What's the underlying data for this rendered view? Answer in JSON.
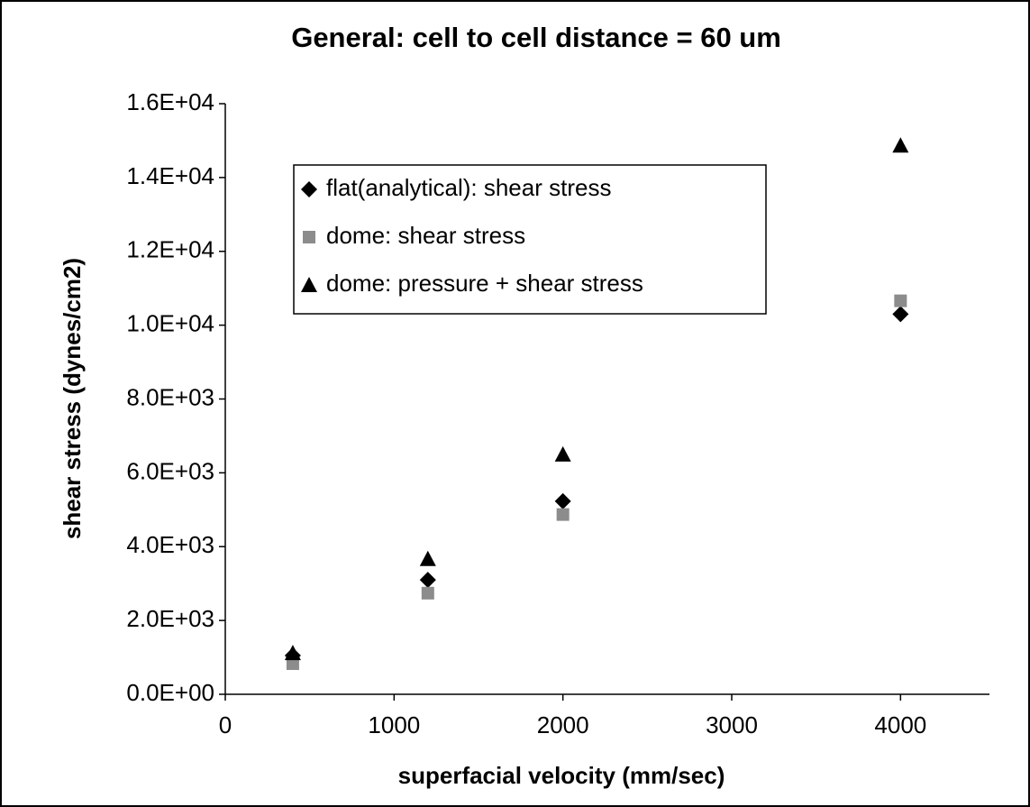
{
  "chart_data": {
    "type": "scatter",
    "title": "General: cell to cell distance = 60 um",
    "x_label": "superfacial velocity (mm/sec)",
    "y_label": "shear stress (dynes/cm2)",
    "xlim": [
      0,
      4500
    ],
    "xticks": [
      0,
      1000,
      2000,
      3000,
      4000
    ],
    "ylim": [
      0,
      16000
    ],
    "yticks": [
      {
        "value": 0,
        "label": "0.0E+00"
      },
      {
        "value": 2000,
        "label": "2.0E+03"
      },
      {
        "value": 4000,
        "label": "4.0E+03"
      },
      {
        "value": 6000,
        "label": "6.0E+03"
      },
      {
        "value": 8000,
        "label": "8.0E+03"
      },
      {
        "value": 10000,
        "label": "1.0E+04"
      },
      {
        "value": 12000,
        "label": "1.2E+04"
      },
      {
        "value": 14000,
        "label": "1.4E+04"
      },
      {
        "value": 16000,
        "label": "1.6E+04"
      }
    ],
    "series": [
      {
        "name": "flat(analytical): shear stress",
        "color": "#000000",
        "marker": "diamond",
        "x": [
          400,
          1200,
          2000,
          4000
        ],
        "values": [
          1050,
          3100,
          5230,
          10300
        ]
      },
      {
        "name": "dome: shear stress",
        "color": "#8c8c8c",
        "marker": "square",
        "x": [
          400,
          1200,
          2000,
          4000
        ],
        "values": [
          830,
          2740,
          4870,
          10660
        ]
      },
      {
        "name": "dome: pressure + shear stress",
        "color": "#000000",
        "marker": "triangle",
        "x": [
          400,
          1200,
          2000,
          4000
        ],
        "values": [
          1120,
          3670,
          6500,
          14870
        ]
      }
    ]
  }
}
